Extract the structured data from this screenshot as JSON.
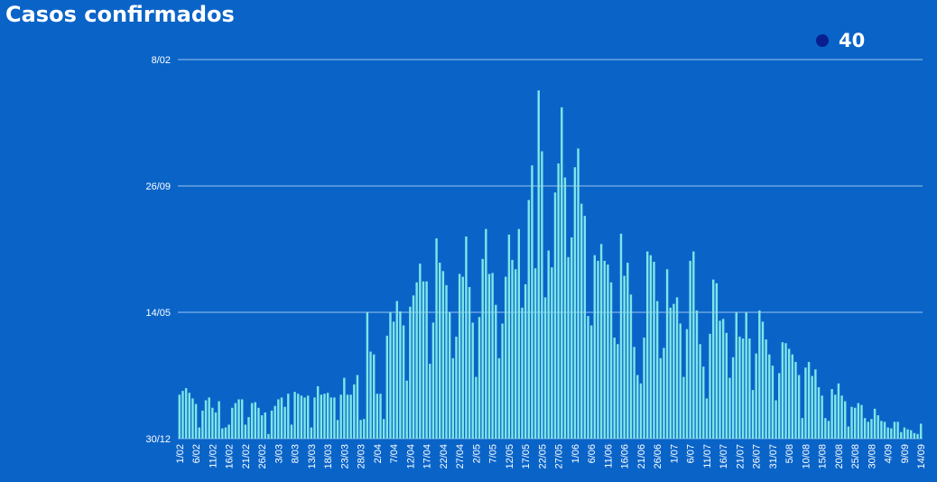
{
  "chart_data": {
    "type": "bar",
    "title": "Casos confirmados",
    "categories": [
      "1/02",
      null,
      null,
      null,
      null,
      "6/02",
      null,
      null,
      null,
      null,
      "11/02",
      null,
      null,
      null,
      null,
      "16/02",
      null,
      null,
      null,
      null,
      "21/02",
      null,
      null,
      null,
      null,
      "26/02",
      null,
      null,
      null,
      null,
      "3/03",
      null,
      null,
      null,
      null,
      "8/03",
      null,
      null,
      null,
      null,
      "13/03",
      null,
      null,
      null,
      null,
      "18/03",
      null,
      null,
      null,
      null,
      "23/03",
      null,
      null,
      null,
      null,
      "28/03",
      null,
      null,
      null,
      null,
      "2/04",
      null,
      null,
      null,
      null,
      "7/04",
      null,
      null,
      null,
      null,
      "12/04",
      null,
      null,
      null,
      null,
      "17/04",
      null,
      null,
      null,
      null,
      "22/04",
      null,
      null,
      null,
      null,
      "27/04",
      null,
      null,
      null,
      null,
      "2/05",
      null,
      null,
      null,
      null,
      "7/05",
      null,
      null,
      null,
      null,
      "12/05",
      null,
      null,
      null,
      null,
      "17/05",
      null,
      null,
      null,
      null,
      "22/05",
      null,
      null,
      null,
      null,
      "27/05",
      null,
      null,
      null,
      null,
      "1/06",
      null,
      null,
      null,
      null,
      "6/06",
      null,
      null,
      null,
      null,
      "11/06",
      null,
      null,
      null,
      null,
      "16/06",
      null,
      null,
      null,
      null,
      "21/06",
      null,
      null,
      null,
      null,
      "26/06",
      null,
      null,
      null,
      null,
      "1/07",
      null,
      null,
      null,
      null,
      "6/07",
      null,
      null,
      null,
      null,
      "11/07",
      null,
      null,
      null,
      null,
      "16/07",
      null,
      null,
      null,
      null,
      "21/07",
      null,
      null,
      null,
      null,
      "26/07",
      null,
      null,
      null,
      null,
      "31/07",
      null,
      null,
      null,
      null,
      "5/08",
      null,
      null,
      null,
      null,
      "10/08",
      null,
      null,
      null,
      null,
      "15/08",
      null,
      null,
      null,
      null,
      "20/08",
      null,
      null,
      null,
      null,
      "25/08",
      null,
      null,
      null,
      null,
      "30/08",
      null,
      null,
      null,
      null,
      "4/09",
      null,
      null,
      null,
      null,
      "9/09",
      null,
      null,
      null,
      null,
      "14/09"
    ],
    "series": [
      {
        "name": "40",
        "color": "#7ee6e6",
        "legend_color": "#0a1f8f",
        "values": [
          47,
          51,
          54,
          49,
          43,
          37,
          12,
          30,
          41,
          44,
          33,
          28,
          40,
          11,
          12,
          15,
          33,
          38,
          42,
          42,
          15,
          23,
          38,
          39,
          33,
          25,
          28,
          5,
          30,
          35,
          42,
          44,
          34,
          48,
          15,
          50,
          48,
          46,
          44,
          46,
          12,
          44,
          56,
          47,
          48,
          49,
          44,
          44,
          20,
          47,
          65,
          47,
          47,
          58,
          68,
          20,
          21,
          135,
          93,
          90,
          48,
          48,
          21,
          110,
          135,
          125,
          147,
          136,
          121,
          62,
          141,
          153,
          167,
          187,
          168,
          168,
          80,
          124,
          214,
          188,
          179,
          164,
          135,
          86,
          109,
          176,
          173,
          216,
          162,
          124,
          66,
          130,
          192,
          224,
          176,
          177,
          143,
          86,
          123,
          173,
          218,
          191,
          181,
          224,
          140,
          165,
          255,
          292,
          182,
          372,
          307,
          151,
          201,
          183,
          263,
          294,
          354,
          279,
          194,
          215,
          290,
          310,
          251,
          238,
          131,
          121,
          196,
          190,
          208,
          190,
          186,
          167,
          108,
          101,
          219,
          174,
          188,
          154,
          98,
          68,
          59,
          108,
          200,
          196,
          189,
          147,
          86,
          97,
          181,
          140,
          144,
          151,
          123,
          66,
          117,
          190,
          200,
          137,
          101,
          77,
          43,
          112,
          170,
          166,
          126,
          128,
          113,
          65,
          87,
          135,
          109,
          107,
          135,
          107,
          52,
          91,
          137,
          125,
          106,
          90,
          78,
          41,
          70,
          103,
          102,
          96,
          90,
          82,
          68,
          22,
          76,
          82,
          67,
          74,
          55,
          46,
          22,
          19,
          53,
          47,
          59,
          46,
          40,
          13,
          34,
          33,
          38,
          36,
          22,
          18,
          21,
          32,
          25,
          19,
          18,
          12,
          11,
          18,
          18,
          7,
          12,
          10,
          9,
          6,
          5,
          16
        ]
      }
    ],
    "ylim": [
      0,
      405
    ],
    "yticks": [
      {
        "value": 0,
        "label": "30/12"
      },
      {
        "value": 135,
        "label": "14/05"
      },
      {
        "value": 270,
        "label": "26/09"
      },
      {
        "value": 405,
        "label": "8/02"
      }
    ],
    "grid": true
  }
}
